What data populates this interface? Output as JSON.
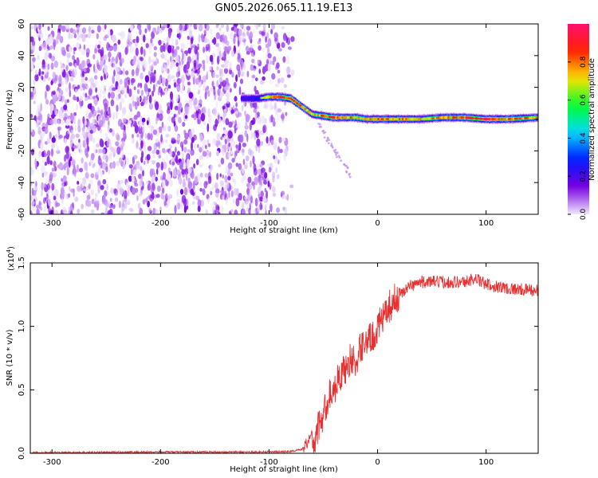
{
  "title": "GN05.2026.065.11.19.E13",
  "chart_data": [
    {
      "type": "heatmap",
      "xlabel": "Height of straight line (km)",
      "ylabel": "Frequency (Hz)",
      "xlim": [
        -320,
        148
      ],
      "ylim": [
        -60,
        60
      ],
      "xticks": [
        -300,
        -200,
        -100,
        0,
        100
      ],
      "xtick_labels": [
        "-300",
        "-200",
        "-100",
        "0",
        "100"
      ],
      "yticks": [
        60,
        40,
        20,
        0,
        -20,
        -40,
        -60
      ],
      "ytick_labels": [
        "60",
        "40",
        "20",
        "0",
        "-20",
        "-40",
        "-60"
      ],
      "colorbar": {
        "label": "Normalized spectral amplitude",
        "range": [
          0,
          1
        ],
        "ticks": [
          0.0,
          0.2,
          0.4,
          0.6,
          0.8
        ],
        "tick_labels": [
          "0.0",
          "0.2",
          "0.4",
          "0.6",
          "0.8"
        ],
        "colors": [
          "#f0e8ff",
          "#7a00e0",
          "#0018ff",
          "#00d8ff",
          "#00ff30",
          "#ffe000",
          "#ff2000",
          "#ff1070"
        ]
      },
      "noise_region": {
        "x_from": -320,
        "x_to": -78,
        "typical_amplitude": 0.05
      },
      "ridge": {
        "x": [
          -125,
          -110,
          -100,
          -90,
          -80,
          -70,
          -60,
          -50,
          -40,
          -30,
          -20,
          -10,
          0,
          20,
          40,
          60,
          80,
          100,
          120,
          148
        ],
        "frequency": [
          13,
          13,
          14,
          14,
          13,
          8,
          3,
          2,
          1,
          1,
          1,
          0,
          0,
          0,
          0,
          1,
          1,
          0,
          0,
          1
        ],
        "amplitude": [
          0.4,
          0.5,
          0.75,
          0.85,
          0.9,
          0.85,
          0.7,
          0.8,
          0.85,
          0.75,
          0.8,
          0.7,
          0.8,
          0.75,
          0.7,
          0.75,
          0.85,
          0.9,
          0.8,
          0.75
        ]
      },
      "faint_branch": {
        "x": [
          -55,
          -45,
          -35,
          -25
        ],
        "frequency": [
          -3,
          -14,
          -25,
          -35
        ]
      }
    },
    {
      "type": "line",
      "xlabel": "Height of straight line (km)",
      "ylabel": "SNR (10 * v/v)",
      "y_multiplier_label": "(x10",
      "y_multiplier_exponent": "4",
      "y_multiplier_close": ")",
      "xlim": [
        -320,
        148
      ],
      "ylim": [
        0,
        1.5
      ],
      "xticks": [
        -300,
        -200,
        -100,
        0,
        100
      ],
      "xtick_labels": [
        "-300",
        "-200",
        "-100",
        "0",
        "100"
      ],
      "yticks": [
        0.0,
        0.5,
        1.0,
        1.5
      ],
      "ytick_labels": [
        "0.0",
        "0.5",
        "1.0",
        "1.5"
      ],
      "series": [
        {
          "color": "#e83030",
          "x": [
            -320,
            -200,
            -100,
            -80,
            -70,
            -65,
            -62,
            -58,
            -55,
            -50,
            -45,
            -40,
            -35,
            -30,
            -25,
            -20,
            -15,
            -10,
            -5,
            0,
            5,
            10,
            20,
            30,
            40,
            60,
            80,
            90,
            100,
            120,
            148
          ],
          "values": [
            0.005,
            0.01,
            0.01,
            0.015,
            0.03,
            0.08,
            0.15,
            0.08,
            0.2,
            0.3,
            0.45,
            0.5,
            0.62,
            0.65,
            0.75,
            0.7,
            0.85,
            0.9,
            0.9,
            1.0,
            1.05,
            1.15,
            1.25,
            1.32,
            1.35,
            1.35,
            1.35,
            1.38,
            1.33,
            1.3,
            1.28
          ],
          "noise_amplitude": 0.05
        }
      ]
    }
  ]
}
